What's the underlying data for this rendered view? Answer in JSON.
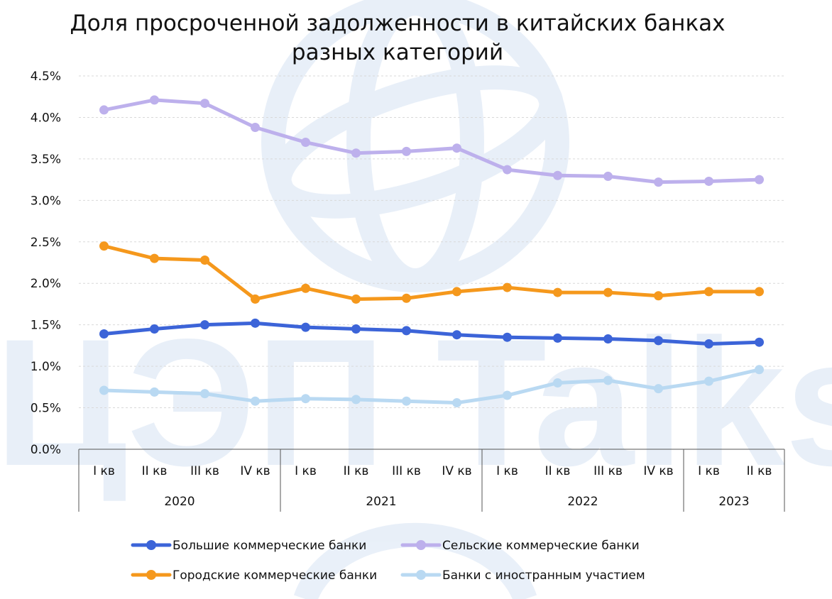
{
  "watermark": {
    "text": "ЦЭП Talks",
    "color": "#3a78c8"
  },
  "chart_data": {
    "type": "line",
    "title_line1": "Доля просроченной задолженности в китайских банках",
    "title_line2": "разных категорий",
    "ylim": [
      0,
      0.045
    ],
    "yticks": [
      0,
      0.005,
      0.01,
      0.015,
      0.02,
      0.025,
      0.03,
      0.035,
      0.04,
      0.045
    ],
    "ytick_labels": [
      "0.0%",
      "0.5%",
      "1.0%",
      "1.5%",
      "2.0%",
      "2.5%",
      "3.0%",
      "3.5%",
      "4.0%",
      "4.5%"
    ],
    "grid": true,
    "categories": [
      "I кв",
      "II кв",
      "III кв",
      "IV кв",
      "I кв",
      "II кв",
      "III кв",
      "IV кв",
      "I кв",
      "II кв",
      "III кв",
      "IV кв",
      "I кв",
      "II кв"
    ],
    "year_groups": [
      {
        "label": "2020",
        "count": 4
      },
      {
        "label": "2021",
        "count": 4
      },
      {
        "label": "2022",
        "count": 4
      },
      {
        "label": "2023",
        "count": 2
      }
    ],
    "legend_position": "bottom",
    "series": [
      {
        "name": "Большие коммерческие банки",
        "color": "#3c64d8",
        "values": [
          0.0139,
          0.0145,
          0.015,
          0.0152,
          0.0147,
          0.0145,
          0.0143,
          0.0138,
          0.0135,
          0.0134,
          0.0133,
          0.0131,
          0.0127,
          0.0129
        ]
      },
      {
        "name": "Сельские коммерческие банки",
        "color": "#bdb0ec",
        "values": [
          0.0409,
          0.0421,
          0.0417,
          0.0388,
          0.037,
          0.0357,
          0.0359,
          0.0363,
          0.0337,
          0.033,
          0.0329,
          0.0322,
          0.0323,
          0.0325
        ]
      },
      {
        "name": "Городские коммерческие банки",
        "color": "#f5981c",
        "values": [
          0.0245,
          0.023,
          0.0228,
          0.0181,
          0.0194,
          0.0181,
          0.0182,
          0.019,
          0.0195,
          0.0189,
          0.0189,
          0.0185,
          0.019,
          0.019
        ]
      },
      {
        "name": "Банки с иностранным участием",
        "color": "#b9d9f2",
        "values": [
          0.0071,
          0.0069,
          0.0067,
          0.0058,
          0.0061,
          0.006,
          0.0058,
          0.0056,
          0.0065,
          0.008,
          0.0083,
          0.0073,
          0.0082,
          0.0096
        ]
      }
    ]
  }
}
